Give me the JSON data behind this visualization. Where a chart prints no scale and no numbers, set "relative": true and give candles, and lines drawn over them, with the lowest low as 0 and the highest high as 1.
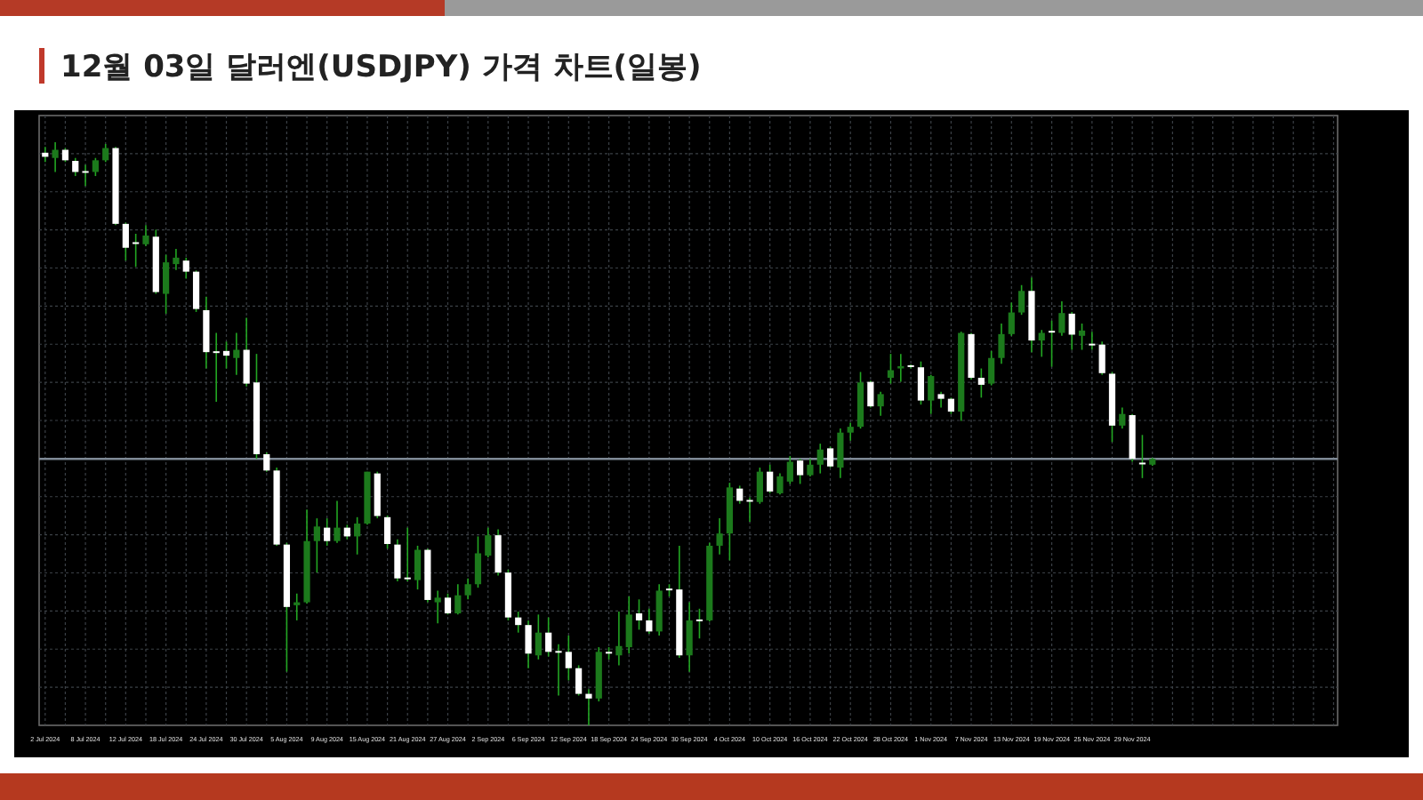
{
  "chart_data": {
    "type": "candlestick",
    "title": "12월 03일 달러엔(USDJPY) 가격 차트(일봉)",
    "relative": true,
    "grid": true,
    "categories": [
      "2 Jul 2024",
      null,
      null,
      null,
      "8 Jul 2024",
      null,
      null,
      null,
      "12 Jul 2024",
      null,
      null,
      null,
      "18 Jul 2024",
      null,
      null,
      null,
      "24 Jul 2024",
      null,
      null,
      null,
      "30 Jul 2024",
      null,
      null,
      null,
      "5 Aug 2024",
      null,
      null,
      null,
      "9 Aug 2024",
      null,
      null,
      null,
      "15 Aug 2024",
      null,
      null,
      null,
      "21 Aug 2024",
      null,
      null,
      null,
      "27 Aug 2024",
      null,
      null,
      null,
      "2 Sep 2024",
      null,
      null,
      null,
      "6 Sep 2024",
      null,
      null,
      null,
      "12 Sep 2024",
      null,
      null,
      null,
      "18 Sep 2024",
      null,
      null,
      null,
      "24 Sep 2024",
      null,
      null,
      null,
      "30 Sep 2024",
      null,
      null,
      null,
      "4 Oct 2024",
      null,
      null,
      null,
      "10 Oct 2024",
      null,
      null,
      null,
      "16 Oct 2024",
      null,
      null,
      null,
      "22 Oct 2024",
      null,
      null,
      null,
      "28 Oct 2024",
      null,
      null,
      null,
      "1 Nov 2024",
      null,
      null,
      null,
      "7 Nov 2024",
      null,
      null,
      null,
      "13 Nov 2024",
      null,
      null,
      null,
      "19 Nov 2024",
      null,
      null,
      null,
      "25 Nov 2024",
      null,
      null,
      null,
      "29 Nov 2024",
      null,
      null
    ],
    "ohlc": [
      [
        0.982,
        0.992,
        0.966,
        0.975
      ],
      [
        0.973,
        1.0,
        0.949,
        0.987
      ],
      [
        0.987,
        0.99,
        0.966,
        0.969
      ],
      [
        0.968,
        0.973,
        0.942,
        0.949
      ],
      [
        0.949,
        0.961,
        0.925,
        0.949
      ],
      [
        0.949,
        0.973,
        0.942,
        0.969
      ],
      [
        0.969,
        0.997,
        0.966,
        0.99
      ],
      [
        0.99,
        0.992,
        0.858,
        0.86
      ],
      [
        0.86,
        0.862,
        0.797,
        0.819
      ],
      [
        0.827,
        0.843,
        0.786,
        0.827
      ],
      [
        0.825,
        0.858,
        0.822,
        0.84
      ],
      [
        0.838,
        0.85,
        0.74,
        0.743
      ],
      [
        0.74,
        0.807,
        0.706,
        0.794
      ],
      [
        0.791,
        0.817,
        0.781,
        0.802
      ],
      [
        0.797,
        0.802,
        0.766,
        0.778
      ],
      [
        0.778,
        0.78,
        0.709,
        0.714
      ],
      [
        0.712,
        0.735,
        0.612,
        0.64
      ],
      [
        0.64,
        0.673,
        0.555,
        0.64
      ],
      [
        0.642,
        0.658,
        0.612,
        0.634
      ],
      [
        0.63,
        0.673,
        0.601,
        0.644
      ],
      [
        0.644,
        0.699,
        0.581,
        0.586
      ],
      [
        0.588,
        0.637,
        0.457,
        0.465
      ],
      [
        0.465,
        0.468,
        0.435,
        0.437
      ],
      [
        0.437,
        0.442,
        0.308,
        0.31
      ],
      [
        0.31,
        0.313,
        0.092,
        0.203
      ],
      [
        0.206,
        0.226,
        0.18,
        0.211
      ],
      [
        0.211,
        0.37,
        0.209,
        0.316
      ],
      [
        0.316,
        0.355,
        0.262,
        0.341
      ],
      [
        0.339,
        0.355,
        0.308,
        0.316
      ],
      [
        0.316,
        0.385,
        0.313,
        0.339
      ],
      [
        0.339,
        0.344,
        0.319,
        0.324
      ],
      [
        0.324,
        0.357,
        0.293,
        0.346
      ],
      [
        0.346,
        0.435,
        0.344,
        0.435
      ],
      [
        0.432,
        0.435,
        0.355,
        0.359
      ],
      [
        0.357,
        0.36,
        0.303,
        0.311
      ],
      [
        0.31,
        0.319,
        0.247,
        0.252
      ],
      [
        0.252,
        0.339,
        0.247,
        0.252
      ],
      [
        0.249,
        0.308,
        0.233,
        0.301
      ],
      [
        0.301,
        0.303,
        0.211,
        0.215
      ],
      [
        0.211,
        0.231,
        0.175,
        0.219
      ],
      [
        0.219,
        0.226,
        0.19,
        0.192
      ],
      [
        0.192,
        0.242,
        0.19,
        0.223
      ],
      [
        0.223,
        0.252,
        0.216,
        0.242
      ],
      [
        0.242,
        0.324,
        0.236,
        0.295
      ],
      [
        0.291,
        0.339,
        0.288,
        0.326
      ],
      [
        0.326,
        0.336,
        0.257,
        0.262
      ],
      [
        0.262,
        0.267,
        0.18,
        0.185
      ],
      [
        0.185,
        0.195,
        0.159,
        0.172
      ],
      [
        0.172,
        0.18,
        0.098,
        0.123
      ],
      [
        0.12,
        0.19,
        0.113,
        0.159
      ],
      [
        0.159,
        0.185,
        0.118,
        0.126
      ],
      [
        0.126,
        0.139,
        0.051,
        0.126
      ],
      [
        0.126,
        0.154,
        0.077,
        0.098
      ],
      [
        0.098,
        0.103,
        0.051,
        0.054
      ],
      [
        0.054,
        0.062,
        0.0,
        0.046
      ],
      [
        0.046,
        0.134,
        0.041,
        0.126
      ],
      [
        0.126,
        0.134,
        0.113,
        0.123
      ],
      [
        0.12,
        0.195,
        0.103,
        0.136
      ],
      [
        0.134,
        0.221,
        0.123,
        0.19
      ],
      [
        0.192,
        0.216,
        0.164,
        0.18
      ],
      [
        0.18,
        0.2,
        0.157,
        0.161
      ],
      [
        0.161,
        0.242,
        0.154,
        0.231
      ],
      [
        0.233,
        0.242,
        0.221,
        0.233
      ],
      [
        0.233,
        0.308,
        0.116,
        0.12
      ],
      [
        0.12,
        0.211,
        0.092,
        0.18
      ],
      [
        0.18,
        0.2,
        0.149,
        0.18
      ],
      [
        0.18,
        0.313,
        0.178,
        0.308
      ],
      [
        0.308,
        0.355,
        0.293,
        0.329
      ],
      [
        0.329,
        0.416,
        0.283,
        0.408
      ],
      [
        0.406,
        0.411,
        0.38,
        0.385
      ],
      [
        0.385,
        0.391,
        0.349,
        0.385
      ],
      [
        0.383,
        0.442,
        0.38,
        0.435
      ],
      [
        0.435,
        0.447,
        0.398,
        0.401
      ],
      [
        0.398,
        0.432,
        0.396,
        0.427
      ],
      [
        0.418,
        0.462,
        0.414,
        0.452
      ],
      [
        0.454,
        0.457,
        0.414,
        0.429
      ],
      [
        0.429,
        0.457,
        0.427,
        0.447
      ],
      [
        0.447,
        0.483,
        0.432,
        0.473
      ],
      [
        0.475,
        0.478,
        0.442,
        0.444
      ],
      [
        0.442,
        0.509,
        0.424,
        0.502
      ],
      [
        0.502,
        0.519,
        0.488,
        0.512
      ],
      [
        0.512,
        0.606,
        0.509,
        0.588
      ],
      [
        0.589,
        0.591,
        0.545,
        0.547
      ],
      [
        0.547,
        0.572,
        0.531,
        0.568
      ],
      [
        0.596,
        0.637,
        0.586,
        0.609
      ],
      [
        0.612,
        0.637,
        0.589,
        0.616
      ],
      [
        0.616,
        0.619,
        0.612,
        0.616
      ],
      [
        0.614,
        0.624,
        0.55,
        0.557
      ],
      [
        0.557,
        0.601,
        0.534,
        0.599
      ],
      [
        0.568,
        0.572,
        0.545,
        0.56
      ],
      [
        0.56,
        0.562,
        0.534,
        0.538
      ],
      [
        0.538,
        0.675,
        0.522,
        0.673
      ],
      [
        0.671,
        0.673,
        0.593,
        0.596
      ],
      [
        0.596,
        0.612,
        0.562,
        0.584
      ],
      [
        0.586,
        0.642,
        0.583,
        0.63
      ],
      [
        0.63,
        0.689,
        0.62,
        0.671
      ],
      [
        0.671,
        0.725,
        0.668,
        0.708
      ],
      [
        0.708,
        0.755,
        0.704,
        0.745
      ],
      [
        0.745,
        0.768,
        0.64,
        0.66
      ],
      [
        0.66,
        0.678,
        0.632,
        0.673
      ],
      [
        0.675,
        0.694,
        0.615,
        0.675
      ],
      [
        0.673,
        0.727,
        0.668,
        0.707
      ],
      [
        0.706,
        0.709,
        0.644,
        0.67
      ],
      [
        0.668,
        0.689,
        0.644,
        0.677
      ],
      [
        0.653,
        0.675,
        0.644,
        0.653
      ],
      [
        0.653,
        0.658,
        0.601,
        0.604
      ],
      [
        0.603,
        0.606,
        0.486,
        0.514
      ],
      [
        0.514,
        0.545,
        0.509,
        0.534
      ],
      [
        0.532,
        0.534,
        0.452,
        0.457
      ],
      [
        0.449,
        0.498,
        0.424,
        0.449
      ],
      [
        0.447,
        0.459,
        0.445,
        0.457
      ]
    ],
    "ref_lines": [
      {
        "axis": "y",
        "value": 0.457,
        "color": "#7f8a96"
      }
    ]
  }
}
